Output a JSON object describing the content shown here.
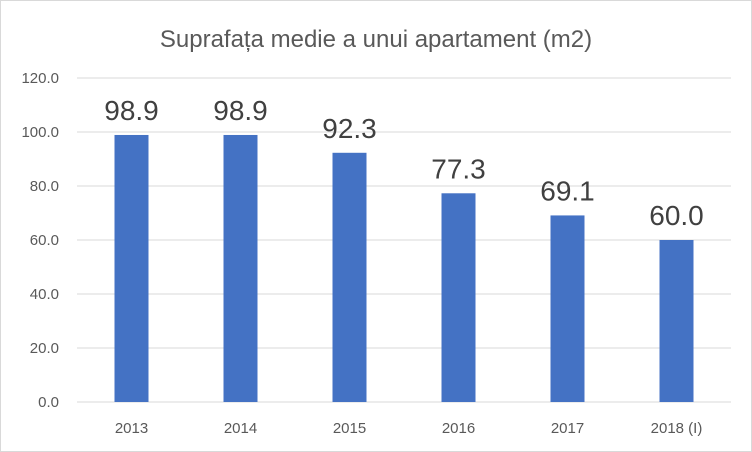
{
  "chart_data": {
    "type": "bar",
    "title": "Suprafața medie a unui apartament (m2)",
    "categories": [
      "2013",
      "2014",
      "2015",
      "2016",
      "2017",
      "2018 (I)"
    ],
    "values": [
      98.9,
      98.9,
      92.3,
      77.3,
      69.1,
      60.0
    ],
    "data_labels": [
      "98.9",
      "98.9",
      "92.3",
      "77.3",
      "69.1",
      "60.0"
    ],
    "y_ticks": [
      "0.0",
      "20.0",
      "40.0",
      "60.0",
      "80.0",
      "100.0",
      "120.0"
    ],
    "ylim": [
      0,
      120
    ],
    "grid": true,
    "legend": "none",
    "bar_color": "#4472c4",
    "grid_color": "#d9d9d9"
  }
}
